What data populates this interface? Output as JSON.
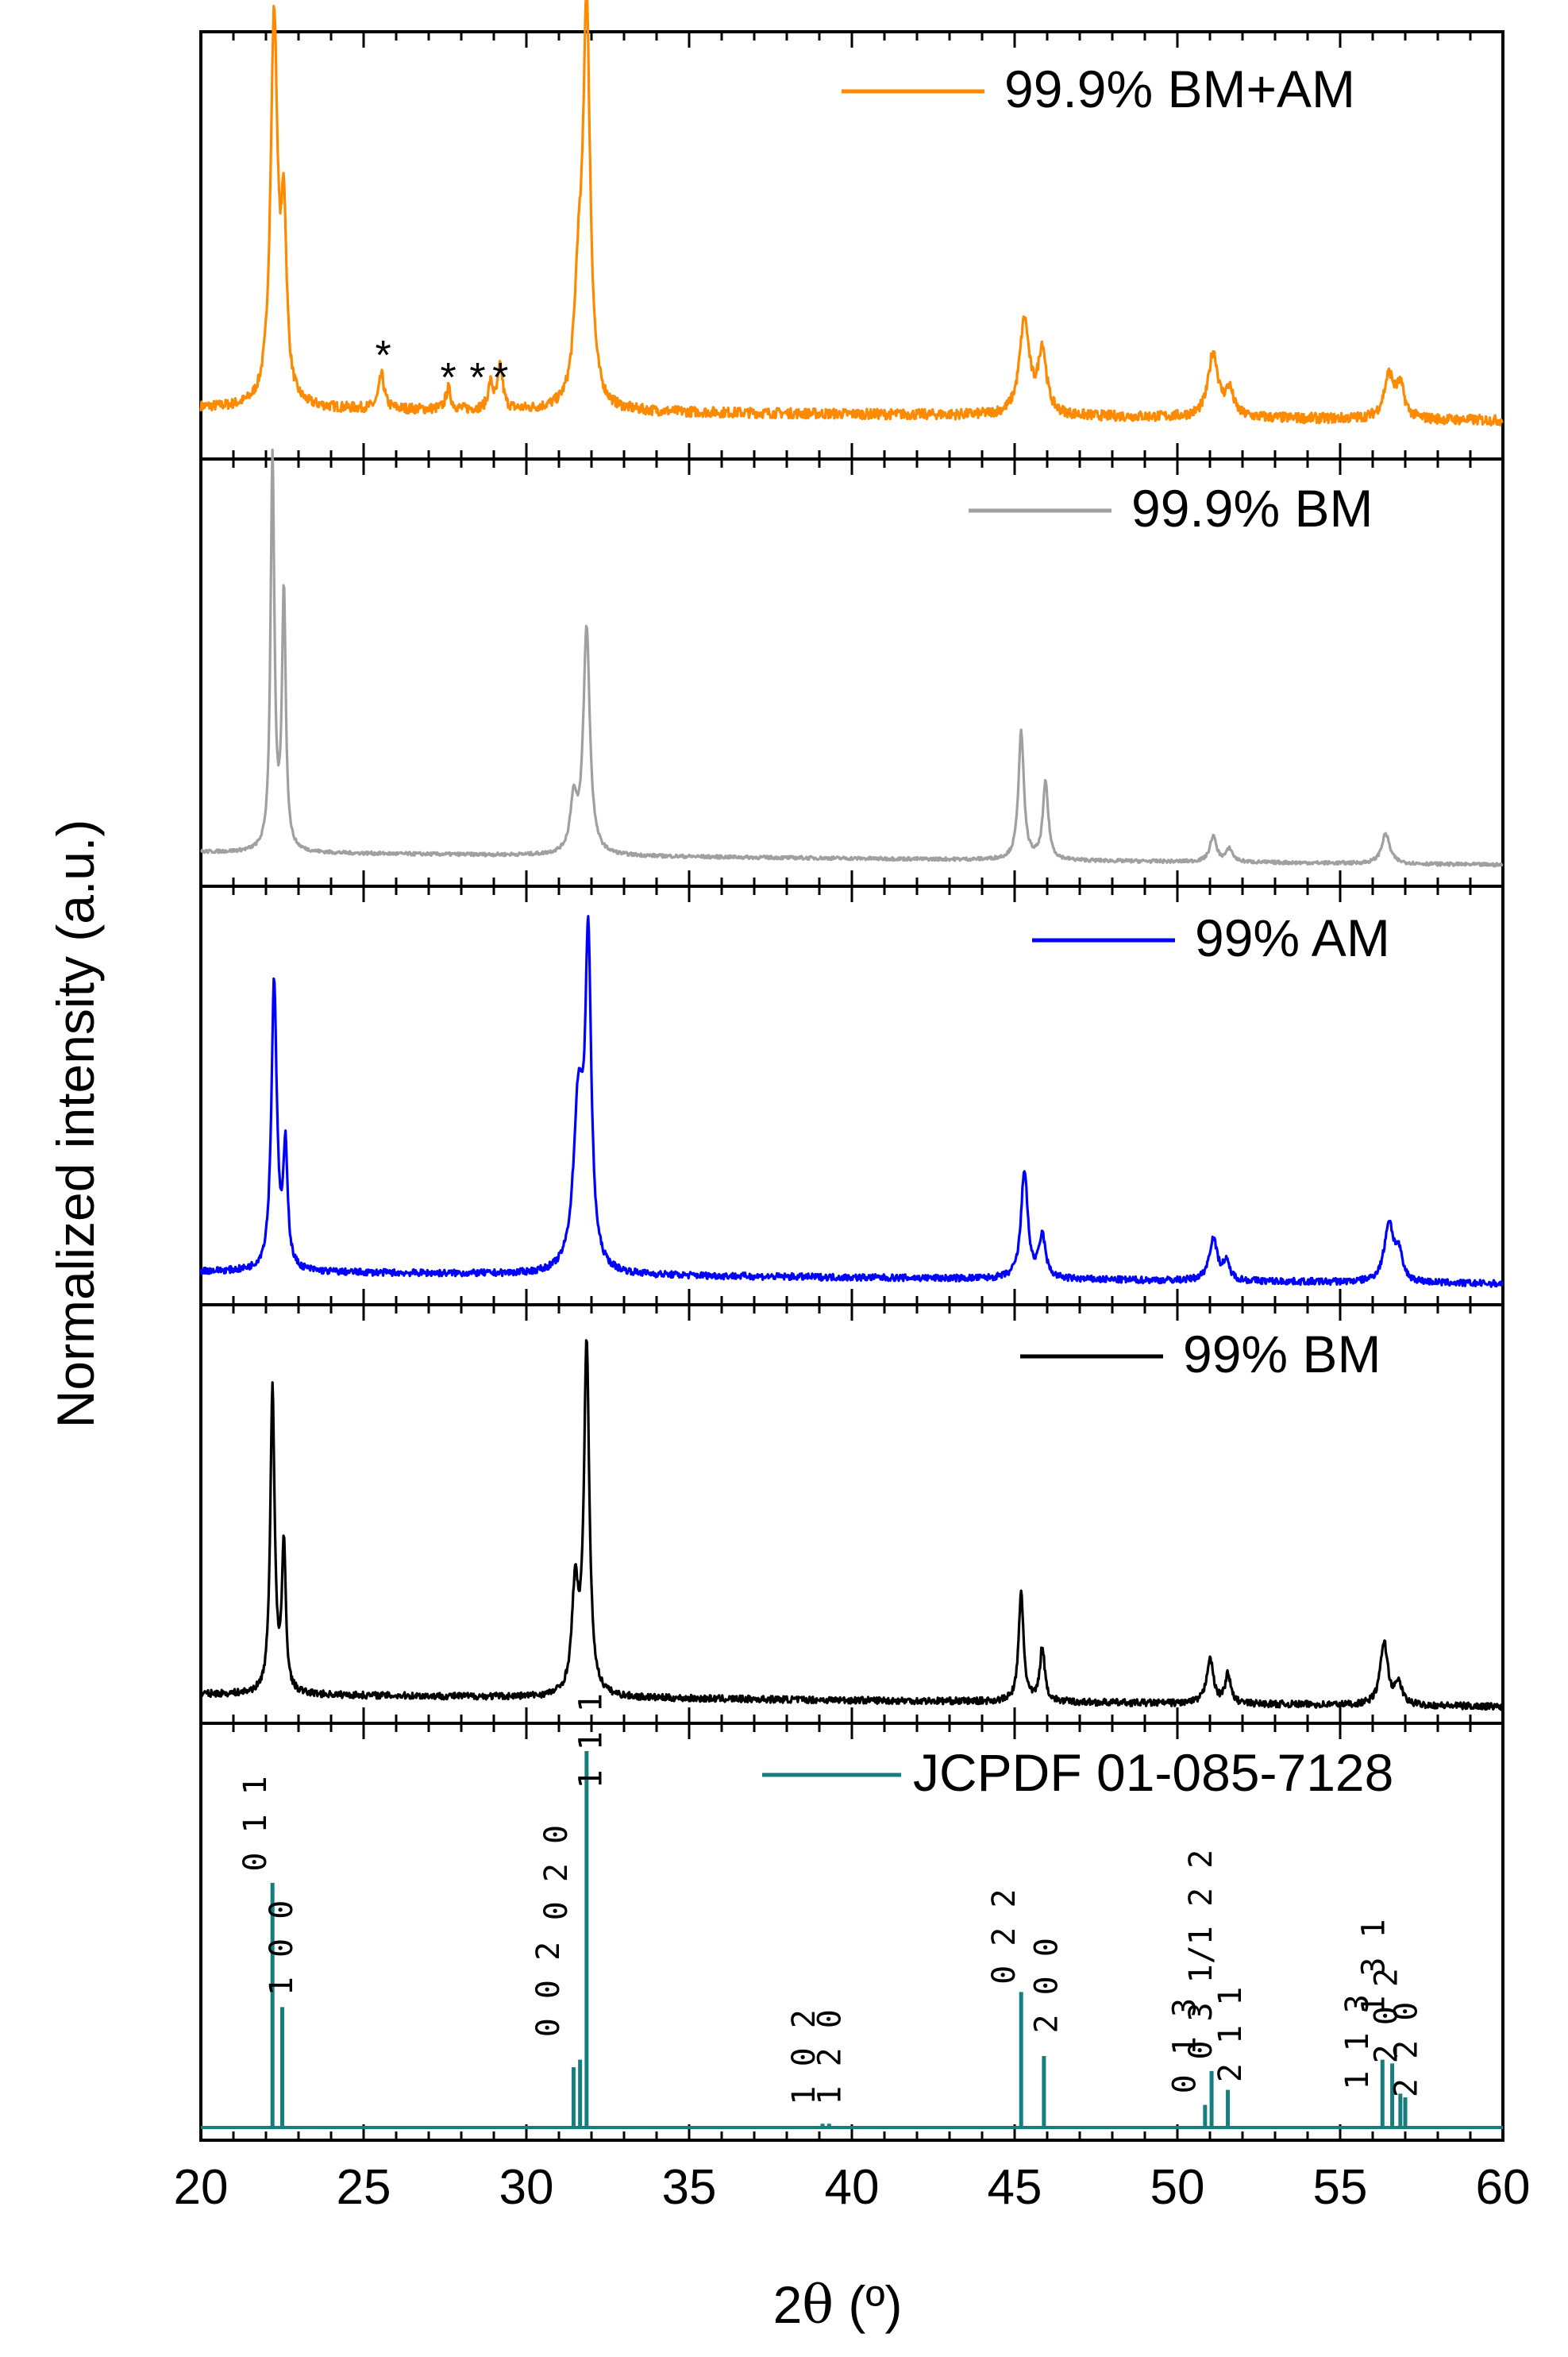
{
  "chart_data": {
    "type": "line",
    "x_axis": {
      "label_prefix": "2",
      "label_symbol": "θ",
      "label_suffix": " (º)",
      "range": [
        20,
        60
      ],
      "ticks": [
        20,
        25,
        30,
        35,
        40,
        45,
        50,
        55,
        60
      ]
    },
    "y_axis": {
      "label": "Normalized intensity (a.u.)"
    },
    "panels": [
      {
        "name": "99.9% BM+AM",
        "color": "#ff8a00",
        "baseline": 0.12,
        "noise": 0.012,
        "peaks": [
          {
            "x": 22.25,
            "h": 0.9,
            "w": 0.13
          },
          {
            "x": 22.55,
            "h": 0.4,
            "w": 0.1
          },
          {
            "x": 25.55,
            "h": 0.08,
            "w": 0.1
          },
          {
            "x": 27.6,
            "h": 0.05,
            "w": 0.09
          },
          {
            "x": 28.9,
            "h": 0.06,
            "w": 0.09
          },
          {
            "x": 29.2,
            "h": 0.1,
            "w": 0.09
          },
          {
            "x": 31.6,
            "h": 0.25,
            "w": 0.15
          },
          {
            "x": 31.85,
            "h": 0.92,
            "w": 0.13
          },
          {
            "x": 45.3,
            "h": 0.22,
            "w": 0.18
          },
          {
            "x": 45.85,
            "h": 0.15,
            "w": 0.15
          },
          {
            "x": 51.1,
            "h": 0.15,
            "w": 0.18
          },
          {
            "x": 51.6,
            "h": 0.06,
            "w": 0.15
          },
          {
            "x": 56.5,
            "h": 0.1,
            "w": 0.18
          },
          {
            "x": 56.85,
            "h": 0.07,
            "w": 0.15
          }
        ],
        "markers": [
          {
            "x": 25.6,
            "label": "*"
          },
          {
            "x": 27.6,
            "label": "*"
          },
          {
            "x": 28.5,
            "label": "*"
          },
          {
            "x": 29.2,
            "label": "*"
          }
        ]
      },
      {
        "name": "99.9% BM",
        "color": "#a0a0a0",
        "baseline": 0.08,
        "noise": 0.004,
        "peaks": [
          {
            "x": 22.2,
            "h": 0.92,
            "w": 0.07
          },
          {
            "x": 22.55,
            "h": 0.6,
            "w": 0.07
          },
          {
            "x": 31.45,
            "h": 0.12,
            "w": 0.12
          },
          {
            "x": 31.85,
            "h": 0.53,
            "w": 0.12
          },
          {
            "x": 45.2,
            "h": 0.3,
            "w": 0.1
          },
          {
            "x": 45.95,
            "h": 0.18,
            "w": 0.1
          },
          {
            "x": 51.1,
            "h": 0.06,
            "w": 0.12
          },
          {
            "x": 51.6,
            "h": 0.03,
            "w": 0.12
          },
          {
            "x": 56.4,
            "h": 0.07,
            "w": 0.15
          }
        ],
        "markers": []
      },
      {
        "name": "99% AM",
        "color": "#0000ff",
        "baseline": 0.08,
        "noise": 0.008,
        "peaks": [
          {
            "x": 22.25,
            "h": 0.69,
            "w": 0.1
          },
          {
            "x": 22.6,
            "h": 0.28,
            "w": 0.08
          },
          {
            "x": 31.6,
            "h": 0.4,
            "w": 0.18
          },
          {
            "x": 31.9,
            "h": 0.75,
            "w": 0.11
          },
          {
            "x": 45.3,
            "h": 0.26,
            "w": 0.12
          },
          {
            "x": 45.85,
            "h": 0.1,
            "w": 0.12
          },
          {
            "x": 51.1,
            "h": 0.1,
            "w": 0.15
          },
          {
            "x": 51.5,
            "h": 0.04,
            "w": 0.13
          },
          {
            "x": 56.5,
            "h": 0.14,
            "w": 0.17
          },
          {
            "x": 56.8,
            "h": 0.06,
            "w": 0.13
          }
        ],
        "markers": []
      },
      {
        "name": "99% BM",
        "color": "#000000",
        "baseline": 0.07,
        "noise": 0.008,
        "peaks": [
          {
            "x": 22.2,
            "h": 0.73,
            "w": 0.08
          },
          {
            "x": 22.55,
            "h": 0.35,
            "w": 0.07
          },
          {
            "x": 31.5,
            "h": 0.25,
            "w": 0.12
          },
          {
            "x": 31.85,
            "h": 0.83,
            "w": 0.1
          },
          {
            "x": 45.2,
            "h": 0.26,
            "w": 0.09
          },
          {
            "x": 45.85,
            "h": 0.13,
            "w": 0.09
          },
          {
            "x": 51.0,
            "h": 0.11,
            "w": 0.12
          },
          {
            "x": 51.55,
            "h": 0.07,
            "w": 0.1
          },
          {
            "x": 56.35,
            "h": 0.15,
            "w": 0.14
          },
          {
            "x": 56.8,
            "h": 0.05,
            "w": 0.12
          }
        ],
        "markers": []
      }
    ],
    "reference": {
      "name": "JCPDF 01-085-7128",
      "color": "#167f7d",
      "lines": [
        {
          "x": 22.2,
          "h": 0.65,
          "label": "0 1 1",
          "lx": 22.0,
          "ly": 0.68
        },
        {
          "x": 22.5,
          "h": 0.32,
          "label": "1 0 0",
          "lx": 22.8,
          "ly": 0.35
        },
        {
          "x": 31.45,
          "h": 0.16,
          "label": "0 0 2",
          "lx": 31.0,
          "ly": 0.24
        },
        {
          "x": 31.65,
          "h": 0.18,
          "label": "0 2 0",
          "lx": 31.25,
          "ly": 0.55
        },
        {
          "x": 31.85,
          "h": 1.0,
          "label": "1 1 1",
          "lx": 32.3,
          "ly": 0.9
        },
        {
          "x": 39.1,
          "h": 0.01,
          "label": "1 0 2",
          "lx": 38.85,
          "ly": 0.06
        },
        {
          "x": 39.3,
          "h": 0.01,
          "label": "1 2 0",
          "lx": 39.65,
          "ly": 0.06
        },
        {
          "x": 45.2,
          "h": 0.36,
          "label": "0 2 2",
          "lx": 45.0,
          "ly": 0.38
        },
        {
          "x": 45.9,
          "h": 0.19,
          "label": "2 0 0",
          "lx": 46.3,
          "ly": 0.25
        },
        {
          "x": 50.85,
          "h": 0.06,
          "label": "0 1 3",
          "lx": 50.55,
          "ly": 0.09
        },
        {
          "x": 51.05,
          "h": 0.15,
          "label": "0 3 1/1 2 2",
          "lx": 51.05,
          "ly": 0.18
        },
        {
          "x": 51.55,
          "h": 0.1,
          "label": "2 1 1",
          "lx": 51.95,
          "ly": 0.12
        },
        {
          "x": 56.3,
          "h": 0.18,
          "label": "1 1 3",
          "lx": 55.85,
          "ly": 0.1
        },
        {
          "x": 56.6,
          "h": 0.17,
          "label": "1 3 1",
          "lx": 56.35,
          "ly": 0.3
        },
        {
          "x": 56.85,
          "h": 0.09,
          "label": "2 0 2",
          "lx": 56.75,
          "ly": 0.17
        },
        {
          "x": 57.0,
          "h": 0.08,
          "label": "2 2 0",
          "lx": 57.35,
          "ly": 0.08
        }
      ]
    }
  },
  "colors": {
    "axis": "#000000",
    "background": "#ffffff"
  }
}
